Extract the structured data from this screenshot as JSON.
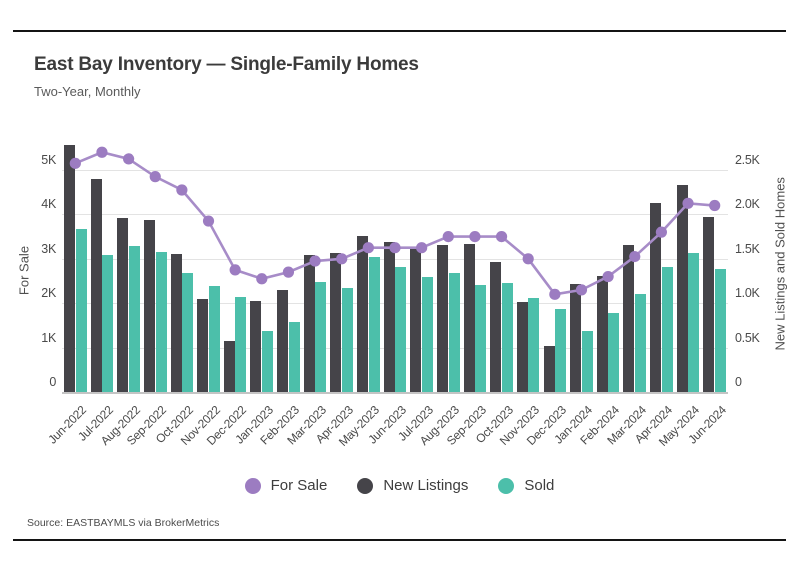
{
  "header": {
    "title": "East Bay Inventory — Single-Family Homes",
    "subtitle": "Two-Year, Monthly"
  },
  "source": "Source:  EASTBAYMLS via BrokerMetrics",
  "legend": [
    {
      "label": "For Sale",
      "color": "#9C7CC1"
    },
    {
      "label": "New Listings",
      "color": "#454449"
    },
    {
      "label": "Sold",
      "color": "#4CBFAA"
    }
  ],
  "colors": {
    "line": "#A78CC8",
    "marker": "#9C7CC1",
    "new_listings_bar": "#454449",
    "sold_bar": "#4CBFAA",
    "grid": "#E3E3E3",
    "baseline": "#C4C4C4"
  },
  "chart_data": {
    "type": "combo-bar-line",
    "categories": [
      "Jun-2022",
      "Jul-2022",
      "Aug-2022",
      "Sep-2022",
      "Oct-2022",
      "Nov-2022",
      "Dec-2022",
      "Jan-2023",
      "Feb-2023",
      "Mar-2023",
      "Apr-2023",
      "May-2023",
      "Jun-2023",
      "Jul-2023",
      "Aug-2023",
      "Sep-2023",
      "Oct-2023",
      "Nov-2023",
      "Dec-2023",
      "Jan-2024",
      "Feb-2024",
      "Mar-2024",
      "Apr-2024",
      "May-2024",
      "Jun-2024"
    ],
    "series": [
      {
        "name": "For Sale",
        "type": "line",
        "axis": "left",
        "values": [
          5150,
          5400,
          5250,
          4850,
          4550,
          3850,
          2750,
          2550,
          2700,
          2950,
          3000,
          3250,
          3250,
          3250,
          3500,
          3500,
          3500,
          3000,
          2200,
          2300,
          2600,
          3050,
          3600,
          4250,
          4200
        ]
      },
      {
        "name": "New Listings",
        "type": "bar",
        "axis": "right",
        "values": [
          2780,
          2400,
          1960,
          1940,
          1550,
          1050,
          570,
          1020,
          1150,
          1540,
          1560,
          1760,
          1690,
          1630,
          1660,
          1670,
          1460,
          1010,
          520,
          1220,
          1310,
          1650,
          2130,
          2330,
          1970
        ]
      },
      {
        "name": "Sold",
        "type": "bar",
        "axis": "right",
        "values": [
          1830,
          1540,
          1640,
          1580,
          1340,
          1190,
          1070,
          690,
          790,
          1240,
          1170,
          1520,
          1410,
          1290,
          1340,
          1200,
          1230,
          1060,
          940,
          690,
          890,
          1100,
          1410,
          1560,
          1390
        ]
      }
    ],
    "left_axis": {
      "label": "For Sale",
      "ticks": [
        "0",
        "1K",
        "2K",
        "3K",
        "4K",
        "5K"
      ],
      "tick_values": [
        0,
        1000,
        2000,
        3000,
        4000,
        5000
      ],
      "range": [
        0,
        5000
      ]
    },
    "right_axis": {
      "label": "New Listings and Sold Homes",
      "ticks": [
        "0",
        "0.5K",
        "1.0K",
        "1.5K",
        "2.0K",
        "2.5K"
      ],
      "tick_values": [
        0,
        500,
        1000,
        1500,
        2000,
        2500
      ],
      "range": [
        0,
        2500
      ]
    },
    "grid": true,
    "legend_position": "bottom"
  }
}
